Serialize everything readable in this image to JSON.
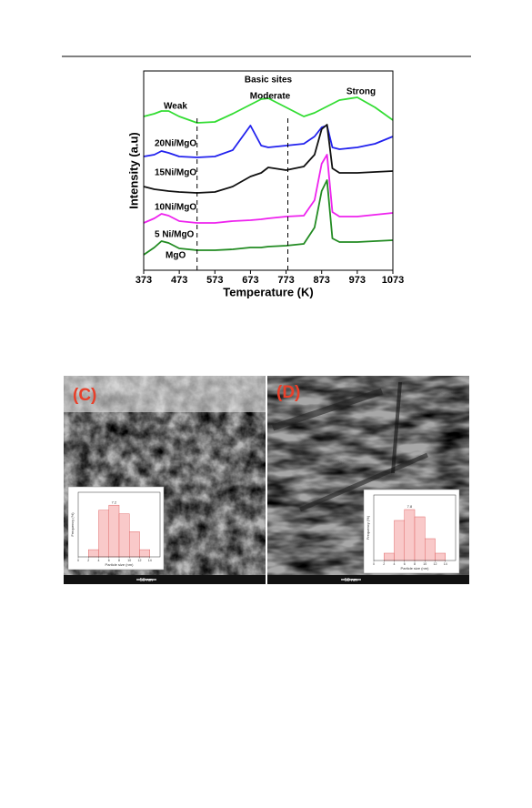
{
  "chart_data": [
    {
      "type": "line",
      "title": "Basic sites",
      "x_label": "Temperature (K)",
      "y_label": "Intensity (a.u)",
      "annotations": [
        "Weak",
        "Moderate",
        "Strong"
      ],
      "curve_labels": [
        "20Ni/MgO",
        "15Ni/MgO",
        "10Ni/MgO",
        "5 Ni/MgO",
        "MgO"
      ],
      "dividers": [
        523,
        778
      ],
      "xlim": [
        373,
        1073
      ],
      "xticks": [
        373,
        473,
        573,
        673,
        773,
        873,
        973,
        1073
      ],
      "ylim": [
        0,
        219
      ],
      "x": [
        373,
        403,
        423,
        443,
        473,
        523,
        573,
        623,
        673,
        703,
        723,
        773,
        823,
        853,
        873,
        888,
        903,
        923,
        973,
        1023,
        1073
      ],
      "series": [
        {
          "color": "#33dd33",
          "values": [
            169,
            172,
            175,
            175,
            169,
            162,
            163,
            172,
            182,
            188,
            189,
            179,
            169,
            173,
            177,
            180,
            183,
            187,
            190,
            179,
            165
          ]
        },
        {
          "color": "#2222ee",
          "values": [
            125,
            127,
            131,
            129,
            125,
            124,
            125,
            132,
            159,
            137,
            135,
            137,
            139,
            147,
            157,
            159,
            135,
            133,
            135,
            139,
            147
          ]
        },
        {
          "color": "#111111",
          "values": [
            92,
            89,
            88,
            87,
            86,
            85,
            86,
            92,
            103,
            107,
            113,
            110,
            114,
            127,
            155,
            160,
            112,
            107,
            107,
            108,
            109
          ]
        },
        {
          "color": "#ee22ee",
          "values": [
            52,
            57,
            62,
            60,
            54,
            52,
            52,
            54,
            55,
            56,
            57,
            59,
            60,
            77,
            117,
            127,
            64,
            59,
            59,
            61,
            63
          ]
        },
        {
          "color": "#228b22",
          "values": [
            17,
            25,
            32,
            30,
            24,
            22,
            22,
            23,
            25,
            25,
            26,
            27,
            29,
            47,
            87,
            99,
            35,
            31,
            31,
            32,
            33
          ]
        }
      ]
    },
    {
      "type": "histogram",
      "x_label": "Particle size (nm)",
      "y_label": "Frequency (%)",
      "annotation": "7.2",
      "bins": [
        2,
        4,
        6,
        8,
        10,
        12,
        14
      ],
      "values": [
        1,
        6.5,
        7.2,
        6,
        3.5,
        1
      ],
      "xlim": [
        0,
        16
      ],
      "xticks": [
        0,
        2,
        4,
        6,
        8,
        10,
        12,
        14
      ],
      "ylim": [
        0,
        9
      ]
    },
    {
      "type": "histogram",
      "x_label": "Particle size (nm)",
      "y_label": "Frequency (%)",
      "annotation": "7.8",
      "bins": [
        2,
        4,
        6,
        8,
        10,
        12,
        14
      ],
      "values": [
        1,
        5.5,
        7,
        6,
        3,
        1
      ],
      "xlim": [
        0,
        16
      ],
      "xticks": [
        0,
        2,
        4,
        6,
        8,
        10,
        12,
        14
      ],
      "ylim": [
        0,
        9
      ]
    }
  ],
  "figure_panels": [
    {
      "label": "(C)",
      "scale_bar": "50 nm"
    },
    {
      "label": "(D)",
      "scale_bar": "50 nm"
    }
  ]
}
